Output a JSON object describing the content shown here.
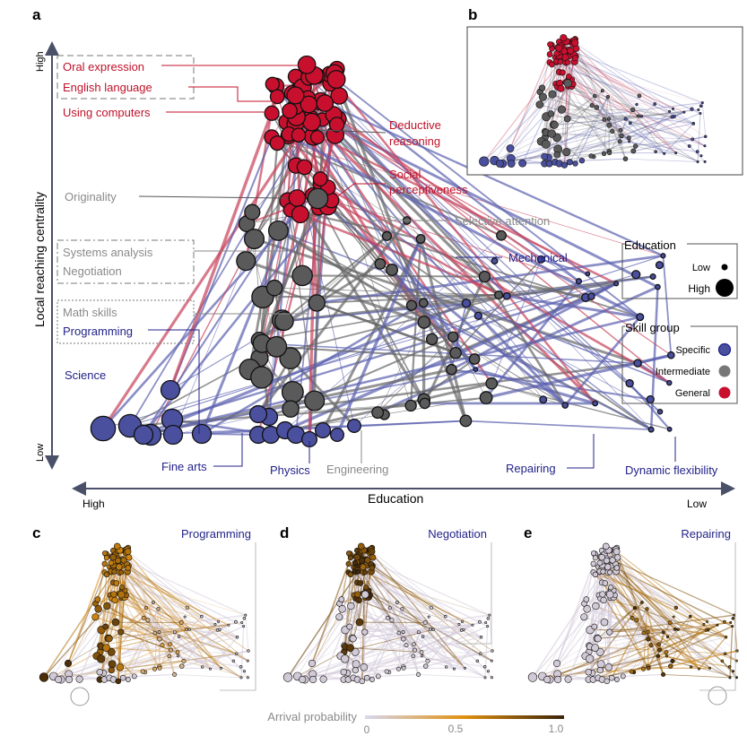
{
  "panels": {
    "a": "a",
    "b": "b",
    "c": "c",
    "d": "d",
    "e": "e"
  },
  "axes": {
    "y_label": "Local reaching centrality",
    "y_high": "High",
    "y_low": "Low",
    "x_label": "Education",
    "x_high": "High",
    "x_low": "Low"
  },
  "labels": {
    "oral_expression": "Oral expression",
    "english_language": "English language",
    "using_computers": "Using computers",
    "deductive_reasoning_1": "Deductive",
    "deductive_reasoning_2": "reasoning",
    "social_perceptiveness_1": "Social",
    "social_perceptiveness_2": "perceptiveness",
    "originality": "Originality",
    "selective_attention": "Selective attention",
    "mechanical": "Mechanical",
    "systems_analysis": "Systems analysis",
    "negotiation": "Negotiation",
    "math_skills": "Math skills",
    "programming": "Programming",
    "science": "Science",
    "fine_arts": "Fine arts",
    "physics": "Physics",
    "engineering": "Engineering",
    "repairing": "Repairing",
    "dynamic_flexibility": "Dynamic flexibility"
  },
  "legend_education": {
    "title": "Education",
    "low": "Low",
    "high": "High"
  },
  "legend_skill": {
    "title": "Skill group",
    "specific": "Specific",
    "intermediate": "Intermediate",
    "general": "General"
  },
  "small_panels": {
    "c": "Programming",
    "d": "Negotiation",
    "e": "Repairing"
  },
  "colorbar": {
    "label": "Arrival probability",
    "ticks": [
      "0",
      "0.5",
      "1.0"
    ]
  },
  "colors": {
    "specific": "#4a4f9e",
    "intermediate": "#5a5a5a",
    "general": "#c8102e",
    "label_red": "#c0122a",
    "label_gray": "#8a8a8a",
    "label_blue": "#23238a",
    "low_prob": "#cfcfec",
    "mid_prob": "#e0900f",
    "high_prob": "#3b2309"
  }
}
